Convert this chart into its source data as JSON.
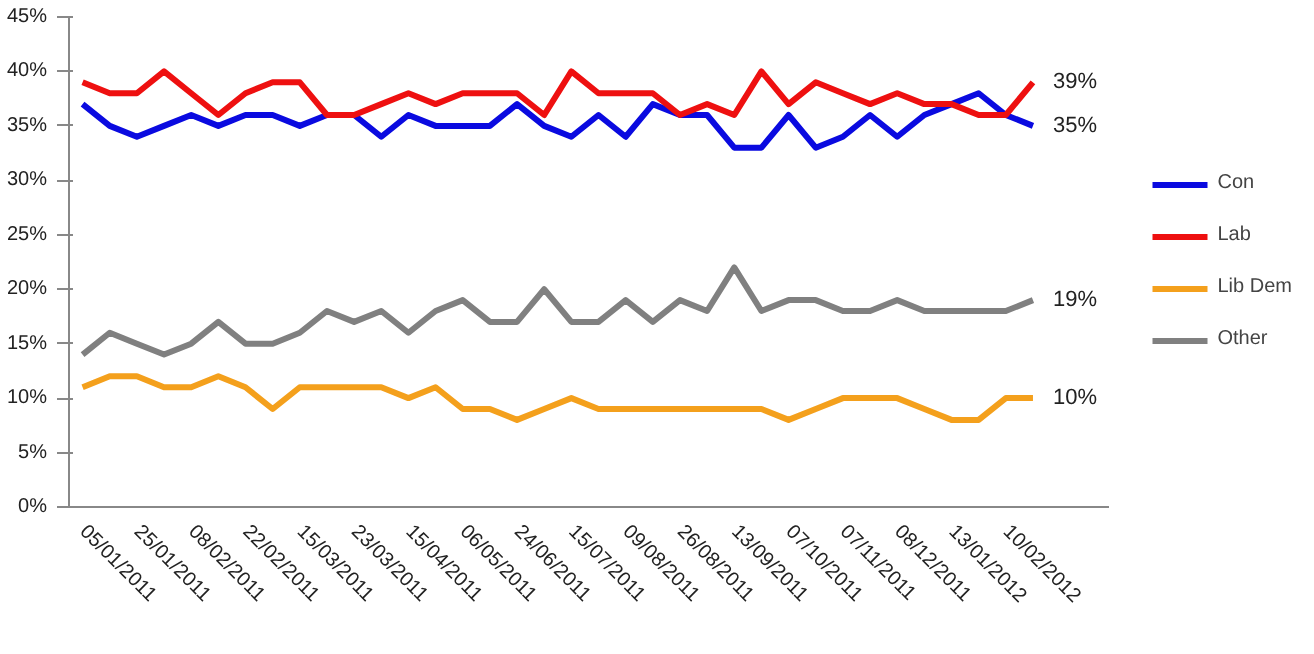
{
  "chart_data": {
    "type": "line",
    "categories": [
      "05/01/2011",
      null,
      "25/01/2011",
      null,
      "08/02/2011",
      null,
      "22/02/2011",
      null,
      "15/03/2011",
      null,
      "23/03/2011",
      null,
      "15/04/2011",
      null,
      "06/05/2011",
      null,
      "24/06/2011",
      null,
      "15/07/2011",
      null,
      "09/08/2011",
      null,
      "26/08/2011",
      null,
      "13/09/2011",
      null,
      "07/10/2011",
      null,
      "07/11/2011",
      null,
      "08/12/2011",
      null,
      "13/01/2012",
      null,
      "10/02/2012",
      null
    ],
    "series": [
      {
        "name": "Con",
        "color": "#0a0ae0",
        "values": [
          37,
          35,
          34,
          35,
          36,
          35,
          36,
          36,
          35,
          36,
          36,
          34,
          36,
          35,
          35,
          35,
          37,
          35,
          34,
          36,
          34,
          37,
          36,
          36,
          33,
          33,
          36,
          33,
          34,
          36,
          34,
          36,
          37,
          38,
          36,
          35
        ]
      },
      {
        "name": "Lab",
        "color": "#ee1010",
        "values": [
          39,
          38,
          38,
          40,
          38,
          36,
          38,
          39,
          39,
          36,
          36,
          37,
          38,
          37,
          38,
          38,
          38,
          36,
          40,
          38,
          38,
          38,
          36,
          37,
          36,
          40,
          37,
          39,
          38,
          37,
          38,
          37,
          37,
          36,
          36,
          39
        ]
      },
      {
        "name": "Lib Dem",
        "color": "#f4a01c",
        "values": [
          11,
          12,
          12,
          11,
          11,
          12,
          11,
          9,
          11,
          11,
          11,
          11,
          10,
          11,
          9,
          9,
          8,
          9,
          10,
          9,
          9,
          9,
          9,
          9,
          9,
          9,
          8,
          9,
          10,
          10,
          10,
          9,
          8,
          8,
          10,
          10
        ]
      },
      {
        "name": "Other",
        "color": "#808080",
        "values": [
          14,
          16,
          15,
          14,
          15,
          17,
          15,
          15,
          16,
          18,
          17,
          18,
          16,
          18,
          19,
          17,
          17,
          20,
          17,
          17,
          19,
          17,
          19,
          18,
          22,
          18,
          19,
          19,
          18,
          18,
          19,
          18,
          18,
          18,
          18,
          19
        ]
      }
    ],
    "ylim": [
      0,
      45
    ],
    "yticks": [
      {
        "value": 0,
        "label": "0%"
      },
      {
        "value": 5,
        "label": "5%"
      },
      {
        "value": 10,
        "label": "10%"
      },
      {
        "value": 15,
        "label": "15%"
      },
      {
        "value": 20,
        "label": "20%"
      },
      {
        "value": 25,
        "label": "25%"
      },
      {
        "value": 30,
        "label": "30%"
      },
      {
        "value": 35,
        "label": "35%"
      },
      {
        "value": 40,
        "label": "40%"
      },
      {
        "value": 45,
        "label": "45%"
      }
    ],
    "annotations": [
      "35%",
      "39%",
      "10%",
      "19%"
    ],
    "grid": false,
    "legend": "right",
    "marker": "none",
    "line_style": "solid"
  }
}
